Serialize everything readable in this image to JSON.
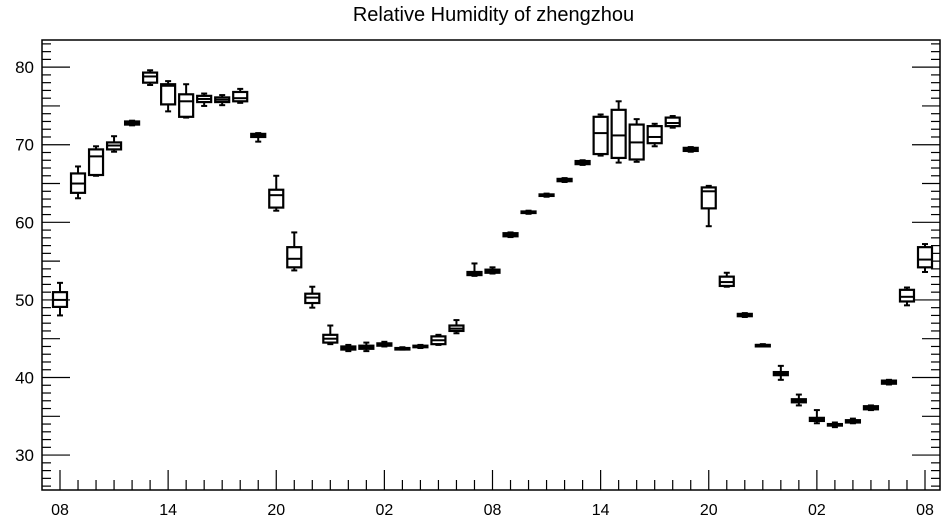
{
  "chart_data": {
    "type": "boxplot",
    "title": "Relative Humidity of zhengzhou",
    "xlabel": "",
    "ylabel": "",
    "ylim": [
      25.5,
      83.5
    ],
    "yticks": [
      30,
      40,
      50,
      60,
      70,
      80
    ],
    "xlim": [
      0,
      49
    ],
    "xtick_labels": [
      "08",
      "14",
      "20",
      "02",
      "08",
      "14",
      "20",
      "02",
      "08"
    ],
    "xtick_positions": [
      1,
      7,
      13,
      19,
      25,
      31,
      37,
      43,
      49
    ],
    "grid": false,
    "legend": "none",
    "color": "#000000",
    "boxes": [
      {
        "x": 1,
        "whislo": 48.0,
        "q1": 49.1,
        "med": 50.0,
        "q3": 51.0,
        "whishi": 52.2
      },
      {
        "x": 2,
        "whislo": 63.1,
        "q1": 63.8,
        "med": 65.0,
        "q3": 66.3,
        "whishi": 67.2
      },
      {
        "x": 3,
        "whislo": 66.0,
        "q1": 66.1,
        "med": 68.5,
        "q3": 69.4,
        "whishi": 69.8
      },
      {
        "x": 4,
        "whislo": 69.1,
        "q1": 69.4,
        "med": 69.9,
        "q3": 70.3,
        "whishi": 71.1
      },
      {
        "x": 5,
        "whislo": 72.5,
        "q1": 72.6,
        "med": 72.8,
        "q3": 73.0,
        "whishi": 73.1
      },
      {
        "x": 6,
        "whislo": 77.7,
        "q1": 78.0,
        "med": 78.8,
        "q3": 79.3,
        "whishi": 79.6
      },
      {
        "x": 7,
        "whislo": 74.3,
        "q1": 75.2,
        "med": 77.6,
        "q3": 77.8,
        "whishi": 78.2
      },
      {
        "x": 8,
        "whislo": 73.5,
        "q1": 73.6,
        "med": 75.6,
        "q3": 76.5,
        "whishi": 77.8
      },
      {
        "x": 9,
        "whislo": 75.0,
        "q1": 75.5,
        "med": 75.9,
        "q3": 76.3,
        "whishi": 76.6
      },
      {
        "x": 10,
        "whislo": 75.1,
        "q1": 75.5,
        "med": 75.8,
        "q3": 76.1,
        "whishi": 76.4
      },
      {
        "x": 11,
        "whislo": 75.4,
        "q1": 75.6,
        "med": 76.0,
        "q3": 76.8,
        "whishi": 77.2
      },
      {
        "x": 12,
        "whislo": 70.4,
        "q1": 71.0,
        "med": 71.2,
        "q3": 71.4,
        "whishi": 71.5
      },
      {
        "x": 13,
        "whislo": 61.5,
        "q1": 61.9,
        "med": 63.5,
        "q3": 64.2,
        "whishi": 66.0
      },
      {
        "x": 14,
        "whislo": 53.8,
        "q1": 54.2,
        "med": 55.3,
        "q3": 56.8,
        "whishi": 58.7
      },
      {
        "x": 15,
        "whislo": 49.0,
        "q1": 49.6,
        "med": 50.3,
        "q3": 50.8,
        "whishi": 51.7
      },
      {
        "x": 16,
        "whislo": 44.3,
        "q1": 44.5,
        "med": 45.0,
        "q3": 45.5,
        "whishi": 46.7
      },
      {
        "x": 17,
        "whislo": 43.4,
        "q1": 43.6,
        "med": 43.8,
        "q3": 44.0,
        "whishi": 44.2
      },
      {
        "x": 18,
        "whislo": 43.4,
        "q1": 43.7,
        "med": 43.9,
        "q3": 44.1,
        "whishi": 44.5
      },
      {
        "x": 19,
        "whislo": 44.0,
        "q1": 44.1,
        "med": 44.3,
        "q3": 44.4,
        "whishi": 44.6
      },
      {
        "x": 20,
        "whislo": 43.6,
        "q1": 43.7,
        "med": 43.7,
        "q3": 43.8,
        "whishi": 43.9
      },
      {
        "x": 21,
        "whislo": 43.8,
        "q1": 43.9,
        "med": 44.0,
        "q3": 44.1,
        "whishi": 44.2
      },
      {
        "x": 22,
        "whislo": 44.2,
        "q1": 44.3,
        "med": 44.8,
        "q3": 45.3,
        "whishi": 45.5
      },
      {
        "x": 23,
        "whislo": 45.7,
        "q1": 46.0,
        "med": 46.3,
        "q3": 46.7,
        "whishi": 47.4
      },
      {
        "x": 24,
        "whislo": 53.1,
        "q1": 53.2,
        "med": 53.4,
        "q3": 53.6,
        "whishi": 54.7
      },
      {
        "x": 25,
        "whislo": 53.4,
        "q1": 53.5,
        "med": 53.7,
        "q3": 53.9,
        "whishi": 54.2
      },
      {
        "x": 26,
        "whislo": 58.1,
        "q1": 58.2,
        "med": 58.4,
        "q3": 58.6,
        "whishi": 58.7
      },
      {
        "x": 27,
        "whislo": 61.1,
        "q1": 61.2,
        "med": 61.3,
        "q3": 61.4,
        "whishi": 61.5
      },
      {
        "x": 28,
        "whislo": 63.3,
        "q1": 63.4,
        "med": 63.5,
        "q3": 63.6,
        "whishi": 63.7
      },
      {
        "x": 29,
        "whislo": 65.2,
        "q1": 65.3,
        "med": 65.4,
        "q3": 65.6,
        "whishi": 65.7
      },
      {
        "x": 30,
        "whislo": 67.4,
        "q1": 67.5,
        "med": 67.7,
        "q3": 67.9,
        "whishi": 68.0
      },
      {
        "x": 31,
        "whislo": 68.6,
        "q1": 68.8,
        "med": 71.5,
        "q3": 73.6,
        "whishi": 73.9
      },
      {
        "x": 32,
        "whislo": 67.7,
        "q1": 68.3,
        "med": 71.2,
        "q3": 74.5,
        "whishi": 75.6
      },
      {
        "x": 33,
        "whislo": 67.8,
        "q1": 68.1,
        "med": 70.3,
        "q3": 72.6,
        "whishi": 73.3
      },
      {
        "x": 34,
        "whislo": 69.8,
        "q1": 70.2,
        "med": 71.0,
        "q3": 72.4,
        "whishi": 72.7
      },
      {
        "x": 35,
        "whislo": 72.2,
        "q1": 72.4,
        "med": 72.8,
        "q3": 73.5,
        "whishi": 73.7
      },
      {
        "x": 36,
        "whislo": 69.1,
        "q1": 69.2,
        "med": 69.4,
        "q3": 69.6,
        "whishi": 69.7
      },
      {
        "x": 37,
        "whislo": 59.5,
        "q1": 61.8,
        "med": 64.0,
        "q3": 64.5,
        "whishi": 64.7
      },
      {
        "x": 38,
        "whislo": 51.7,
        "q1": 51.8,
        "med": 52.3,
        "q3": 53.0,
        "whishi": 53.5
      },
      {
        "x": 39,
        "whislo": 47.8,
        "q1": 47.9,
        "med": 48.0,
        "q3": 48.2,
        "whishi": 48.3
      },
      {
        "x": 40,
        "whislo": 44.0,
        "q1": 44.1,
        "med": 44.2,
        "q3": 44.2,
        "whishi": 44.3
      },
      {
        "x": 41,
        "whislo": 39.7,
        "q1": 40.3,
        "med": 40.5,
        "q3": 40.7,
        "whishi": 41.5
      },
      {
        "x": 42,
        "whislo": 36.4,
        "q1": 36.8,
        "med": 37.0,
        "q3": 37.2,
        "whishi": 37.8
      },
      {
        "x": 43,
        "whislo": 34.1,
        "q1": 34.4,
        "med": 34.6,
        "q3": 34.8,
        "whishi": 35.8
      },
      {
        "x": 44,
        "whislo": 33.6,
        "q1": 33.8,
        "med": 33.9,
        "q3": 34.0,
        "whishi": 34.2
      },
      {
        "x": 45,
        "whislo": 34.1,
        "q1": 34.2,
        "med": 34.4,
        "q3": 34.5,
        "whishi": 34.7
      },
      {
        "x": 46,
        "whislo": 35.8,
        "q1": 35.9,
        "med": 36.1,
        "q3": 36.3,
        "whishi": 36.4
      },
      {
        "x": 47,
        "whislo": 39.1,
        "q1": 39.2,
        "med": 39.4,
        "q3": 39.6,
        "whishi": 39.7
      },
      {
        "x": 48,
        "whislo": 49.3,
        "q1": 49.8,
        "med": 50.4,
        "q3": 51.3,
        "whishi": 51.6
      },
      {
        "x": 49,
        "whislo": 53.6,
        "q1": 54.2,
        "med": 55.2,
        "q3": 56.8,
        "whishi": 57.2
      }
    ]
  }
}
